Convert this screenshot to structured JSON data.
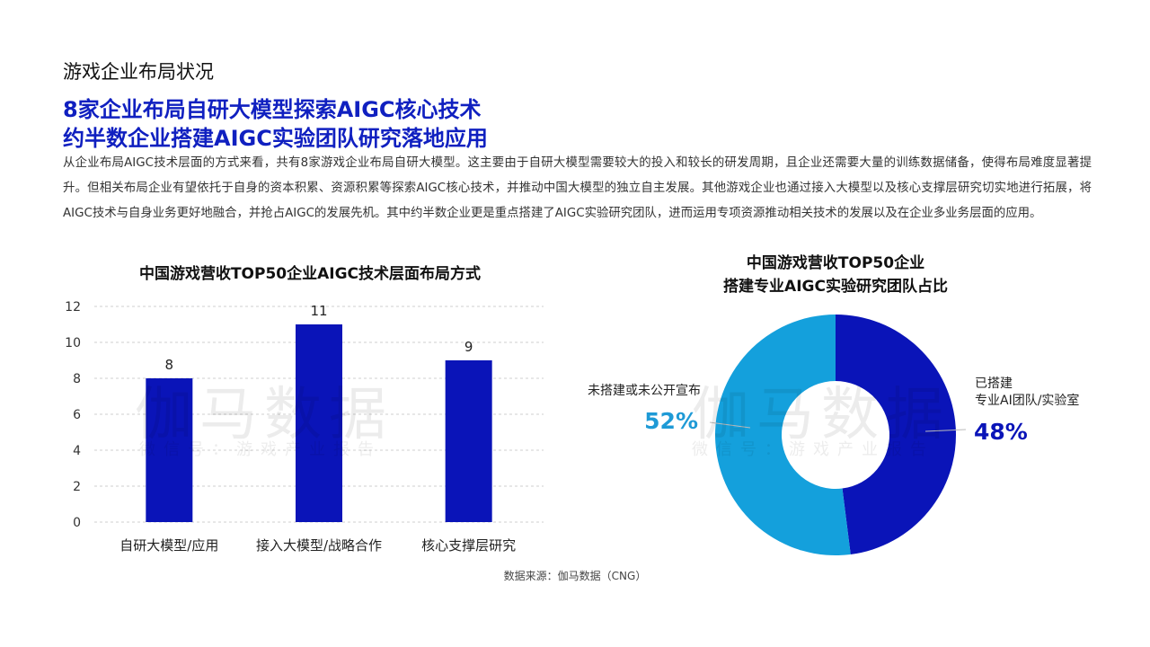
{
  "page": {
    "section_title": "游戏企业布局状况",
    "headline_1": "8家企业布局自研大模型探索AIGC核心技术",
    "headline_2": "约半数企业搭建AIGC实验团队研究落地应用",
    "body": "从企业布局AIGC技术层面的方式来看，共有8家游戏企业布局自研大模型。这主要由于自研大模型需要较大的投入和较长的研发周期，且企业还需要大量的训练数据储备，使得布局难度显著提升。但相关布局企业有望依托于自身的资本积累、资源积累等探索AIGC核心技术，并推动中国大模型的独立自主发展。其他游戏企业也通过接入大模型以及核心支撑层研究切实地进行拓展，将AIGC技术与自身业务更好地融合，并抢占AIGC的发展先机。其中约半数企业更是重点搭建了AIGC实验研究团队，进而运用专项资源推动相关技术的发展以及在企业多业务层面的应用。",
    "source": "数据来源：伽马数据（CNG）",
    "watermark_main": "伽马数据",
    "watermark_sub": "微信号：游戏产业报告"
  },
  "colors": {
    "accent": "#1020c0",
    "bar": "#0a14b8",
    "pie_dark": "#0a14b8",
    "pie_light": "#14a0dc",
    "light_text": "#1e9ad6"
  },
  "chart_data": [
    {
      "type": "bar",
      "title": "中国游戏营收TOP50企业AIGC技术层面布局方式",
      "categories": [
        "自研大模型/应用",
        "接入大模型/战略合作",
        "核心支撑层研究"
      ],
      "values": [
        8,
        11,
        9
      ],
      "ylim": [
        0,
        12
      ],
      "yticks": [
        0,
        2,
        4,
        6,
        8,
        10,
        12
      ],
      "grid": true,
      "xlabel": "",
      "ylabel": ""
    },
    {
      "type": "pie",
      "title_line1": "中国游戏营收TOP50企业",
      "title_line2": "搭建专业AIGC实验研究团队占比",
      "slices": [
        {
          "label_line1": "已搭建",
          "label_line2": "专业AI团队/实验室",
          "value": 48,
          "display": "48%"
        },
        {
          "label_line1": "未搭建或未公开宣布",
          "label_line2": "",
          "value": 52,
          "display": "52%"
        }
      ]
    }
  ]
}
